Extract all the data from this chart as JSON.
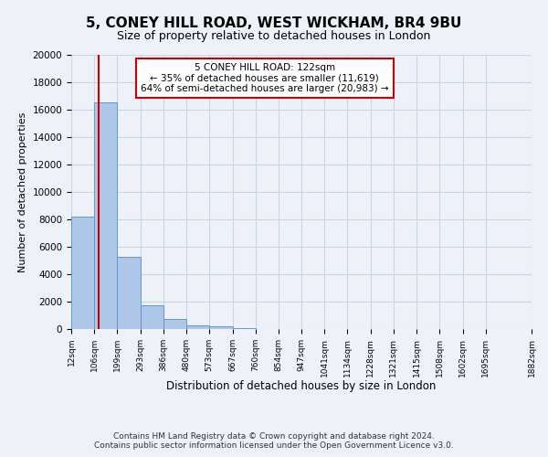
{
  "title": "5, CONEY HILL ROAD, WEST WICKHAM, BR4 9BU",
  "subtitle": "Size of property relative to detached houses in London",
  "bar_heights": [
    8200,
    16500,
    5300,
    1750,
    750,
    300,
    200,
    100,
    0,
    0,
    0,
    0,
    0,
    0,
    0,
    0,
    0,
    0,
    0
  ],
  "bin_edges": [
    12,
    106,
    199,
    293,
    386,
    480,
    573,
    667,
    760,
    854,
    947,
    1041,
    1134,
    1228,
    1321,
    1415,
    1508,
    1602,
    1695,
    1882
  ],
  "bin_labels": [
    "12sqm",
    "106sqm",
    "199sqm",
    "293sqm",
    "386sqm",
    "480sqm",
    "573sqm",
    "667sqm",
    "760sqm",
    "854sqm",
    "947sqm",
    "1041sqm",
    "1134sqm",
    "1228sqm",
    "1321sqm",
    "1415sqm",
    "1508sqm",
    "1602sqm",
    "1695sqm",
    "1882sqm"
  ],
  "bar_color": "#aec6e8",
  "bar_edge_color": "#5b9bd5",
  "red_line_x": 122,
  "annotation_title": "5 CONEY HILL ROAD: 122sqm",
  "annotation_line1": "← 35% of detached houses are smaller (11,619)",
  "annotation_line2": "64% of semi-detached houses are larger (20,983) →",
  "annotation_box_color": "#ffffff",
  "annotation_box_edge_color": "#cc0000",
  "ylabel": "Number of detached properties",
  "xlabel": "Distribution of detached houses by size in London",
  "ylim": [
    0,
    20000
  ],
  "yticks": [
    0,
    2000,
    4000,
    6000,
    8000,
    10000,
    12000,
    14000,
    16000,
    18000,
    20000
  ],
  "footer_line1": "Contains HM Land Registry data © Crown copyright and database right 2024.",
  "footer_line2": "Contains public sector information licensed under the Open Government Licence v3.0.",
  "background_color": "#eef2f8",
  "plot_bg_color": "#eef2f8",
  "grid_color": "#c8d4e8"
}
